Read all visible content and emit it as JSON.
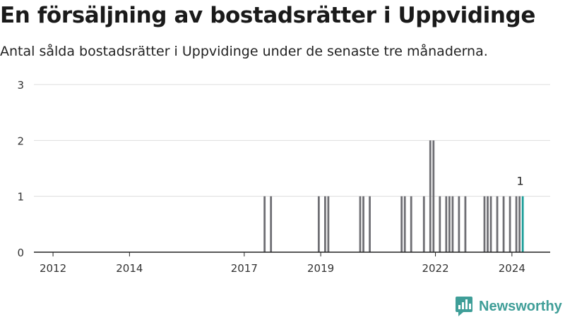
{
  "title": "En försäljning av bostadsrätter i Uppvidinge",
  "subtitle": "Antal sålda bostadsrätter i Uppvidinge under de senaste tre månaderna.",
  "logo": {
    "text": "Newsworthy",
    "icon": "newsworthy-logo-icon"
  },
  "colors": {
    "bar": "#6e6e73",
    "highlight": "#1a9e98",
    "grid": "#dddddd",
    "baseline": "#222222",
    "logo": "#3f9e98"
  },
  "chart_data": {
    "type": "bar",
    "title": "",
    "xlabel": "",
    "ylabel": "",
    "ylim": [
      0,
      3
    ],
    "y_ticks": [
      0,
      1,
      2,
      3
    ],
    "x_ticks": [
      {
        "year": 2012,
        "label": "2012"
      },
      {
        "year": 2014,
        "label": "2014"
      },
      {
        "year": 2017,
        "label": "2017"
      },
      {
        "year": 2019,
        "label": "2019"
      },
      {
        "year": 2022,
        "label": "2022"
      },
      {
        "year": 2024,
        "label": "2024"
      }
    ],
    "grid": true,
    "bar_width_years": 0.07,
    "series": [
      {
        "values": [
          {
            "date": "2017-07",
            "value": 1
          },
          {
            "date": "2017-09",
            "value": 1
          },
          {
            "date": "2018-12",
            "value": 1
          },
          {
            "date": "2019-02",
            "value": 1
          },
          {
            "date": "2019-03",
            "value": 1
          },
          {
            "date": "2020-01",
            "value": 1
          },
          {
            "date": "2020-02",
            "value": 1
          },
          {
            "date": "2020-04",
            "value": 1
          },
          {
            "date": "2021-02",
            "value": 1
          },
          {
            "date": "2021-03",
            "value": 1
          },
          {
            "date": "2021-05",
            "value": 1
          },
          {
            "date": "2021-09",
            "value": 1
          },
          {
            "date": "2021-11",
            "value": 2
          },
          {
            "date": "2021-12",
            "value": 2
          },
          {
            "date": "2022-02",
            "value": 1
          },
          {
            "date": "2022-04",
            "value": 1
          },
          {
            "date": "2022-05",
            "value": 1
          },
          {
            "date": "2022-06",
            "value": 1
          },
          {
            "date": "2022-08",
            "value": 1
          },
          {
            "date": "2022-10",
            "value": 1
          },
          {
            "date": "2023-04",
            "value": 1
          },
          {
            "date": "2023-05",
            "value": 1
          },
          {
            "date": "2023-06",
            "value": 1
          },
          {
            "date": "2023-08",
            "value": 1
          },
          {
            "date": "2023-10",
            "value": 1
          },
          {
            "date": "2023-12",
            "value": 1
          },
          {
            "date": "2024-02",
            "value": 1
          },
          {
            "date": "2024-03",
            "value": 1
          },
          {
            "date": "2024-04",
            "value": 1,
            "highlight": true,
            "label": "1"
          }
        ]
      }
    ]
  }
}
